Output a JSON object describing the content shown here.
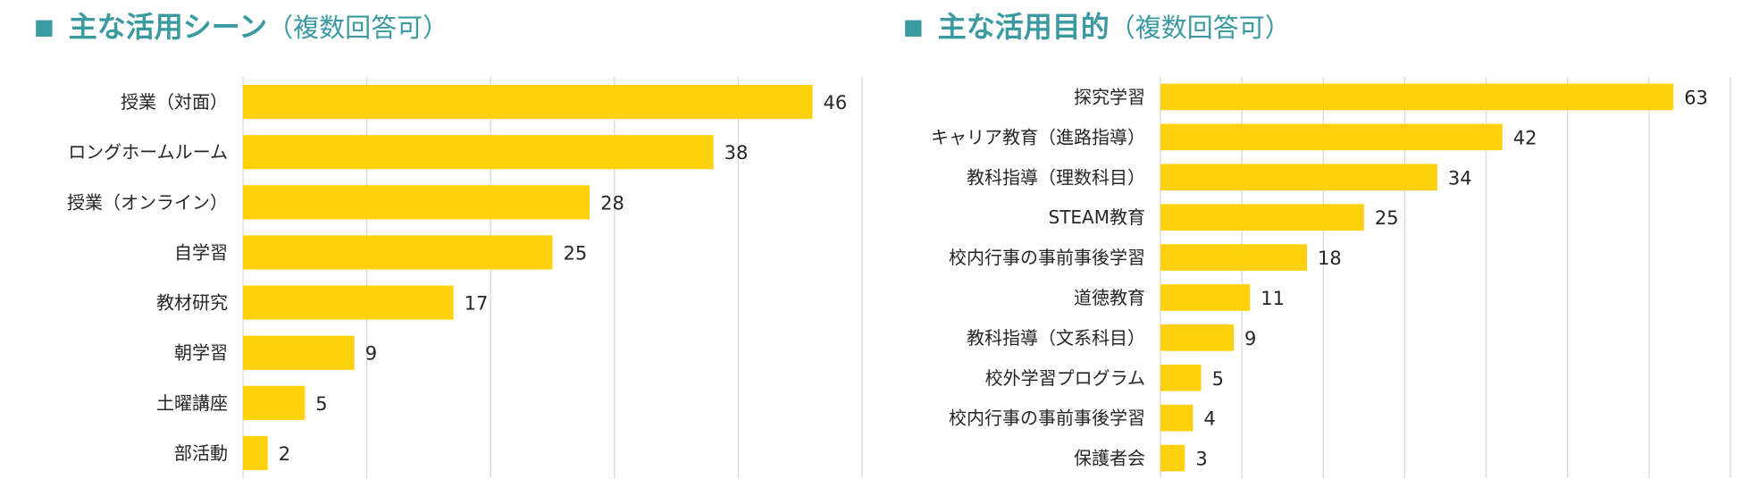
{
  "colors": {
    "title": "#3a9aa0",
    "bar": "#fed10f",
    "grid": "#d9d9d9",
    "text": "#262626"
  },
  "title_marker": "■",
  "chart_data": [
    {
      "type": "bar",
      "orientation": "horizontal",
      "title": "主な活用シーン",
      "subtitle": "（複数回答可）",
      "categories": [
        "授業（対面）",
        "ロングホームルーム",
        "授業（オンライン）",
        "自学習",
        "教材研究",
        "朝学習",
        "土曜講座",
        "部活動"
      ],
      "values": [
        46,
        38,
        28,
        25,
        17,
        9,
        5,
        2
      ],
      "xlim": [
        0,
        50
      ],
      "grid_step": 10,
      "grid": true
    },
    {
      "type": "bar",
      "orientation": "horizontal",
      "title": "主な活用目的",
      "subtitle": "（複数回答可）",
      "categories": [
        "探究学習",
        "キャリア教育（進路指導）",
        "教科指導（理数科目）",
        "STEAM教育",
        "校内行事の事前事後学習",
        "道徳教育",
        "教科指導（文系科目）",
        "校外学習プログラム",
        "校内行事の事前事後学習",
        "保護者会"
      ],
      "values": [
        63,
        42,
        34,
        25,
        18,
        11,
        9,
        5,
        4,
        3
      ],
      "xlim": [
        0,
        70
      ],
      "grid_step": 10,
      "grid": true
    }
  ]
}
